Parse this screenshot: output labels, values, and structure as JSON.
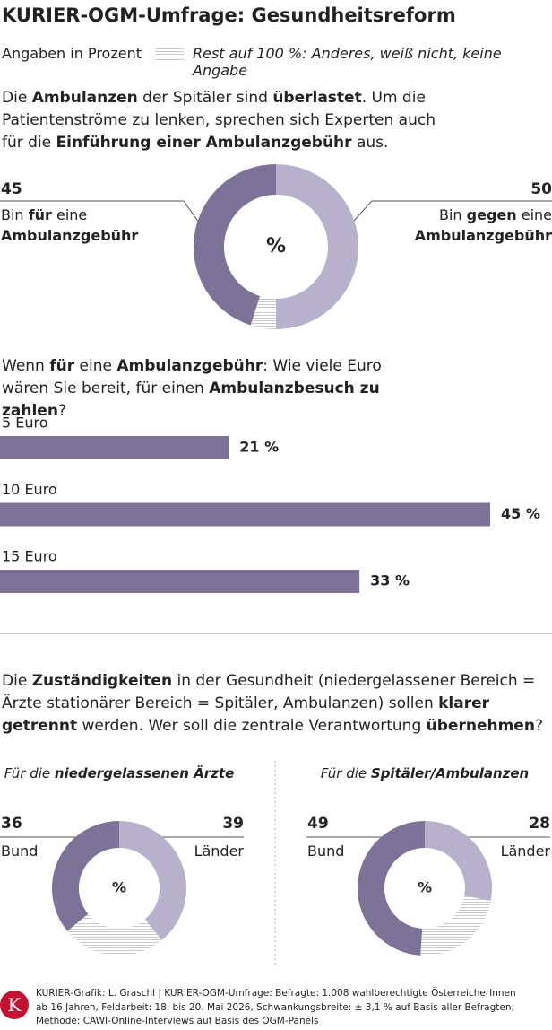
{
  "header": {
    "title": "KURIER-OGM-Umfrage: Gesundheitsreform",
    "unit_note": "Angaben in Prozent",
    "rest_note": "Rest auf 100 %: Anderes, weiß nicht, keine Angabe"
  },
  "chart_data": [
    {
      "type": "donut",
      "question": [
        "Die ",
        "Ambulanzen",
        " der Spitäler sind ",
        "überlastet",
        ". Um die Patientenströme zu lenken, sprechen sich Experten auch für die ",
        "Einführung einer Ambulanzgebühr",
        " aus."
      ],
      "center_label": "%",
      "series": [
        {
          "name": [
            "Bin ",
            "für",
            " eine ",
            "Ambulanzgebühr"
          ],
          "value": 45,
          "color": "#7d7298"
        },
        {
          "name": [
            "Bin ",
            "gegen",
            " eine ",
            "Ambulanzgebühr"
          ],
          "value": 50,
          "color": "#b8b1cc"
        }
      ]
    },
    {
      "type": "bar",
      "question": [
        "Wenn ",
        "für",
        " eine ",
        "Ambulanzgebühr",
        ": Wie viele Euro wären Sie bereit, für einen ",
        "Ambulanzbesuch zu zahlen",
        "?"
      ],
      "categories": [
        "5 Euro",
        "10 Euro",
        "15 Euro"
      ],
      "values": [
        21,
        45,
        33
      ],
      "value_labels": [
        "21 %",
        "45 %",
        "33 %"
      ],
      "color": "#7d7298"
    },
    {
      "type": "donut",
      "question": [
        "Die ",
        "Zuständigkeiten",
        " in der Gesundheit (niedergelassener Bereich = Ärzte stationärer Bereich = Spitäler, Ambulanzen) sollen ",
        "klarer getrennt",
        " werden. Wer soll die zentrale Verantwortung ",
        "übernehmen",
        "?"
      ],
      "title": [
        "Für die ",
        "niedergelassenen Ärzte"
      ],
      "center_label": "%",
      "series": [
        {
          "name": "Bund",
          "value": 36,
          "color": "#7d7298"
        },
        {
          "name": "Länder",
          "value": 39,
          "color": "#b8b1cc"
        }
      ]
    },
    {
      "type": "donut",
      "title": [
        "Für die ",
        "Spitäler/Ambulanzen"
      ],
      "center_label": "%",
      "series": [
        {
          "name": "Bund",
          "value": 49,
          "color": "#7d7298"
        },
        {
          "name": "Länder",
          "value": 28,
          "color": "#b8b1cc"
        }
      ]
    }
  ],
  "footer": {
    "logo": "K",
    "source": [
      "KURIER-Grafik: L. Graschl | KURIER-OGM-Umfrage: Befragte: 1.008 wahlberechtigte ÖsterreicherInnen",
      "ab 16 Jahren, Feldarbeit: 18. bis 20. Mai 2026, Schwankungsbreite: ± 3,1 % auf Basis aller Befragten;",
      "Methode: CAWI-Online-Interviews auf Basis des OGM-Panels"
    ]
  }
}
